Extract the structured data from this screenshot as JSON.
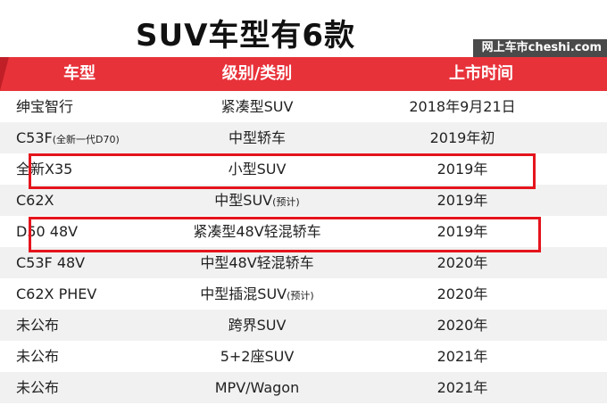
{
  "title": "SUV车型有6款",
  "site_badge": "网上车市cheshi.com",
  "table": {
    "headers": [
      "车型",
      "级别/类别",
      "上市时间"
    ],
    "rows": [
      {
        "model": "绅宝智行",
        "model_note": "",
        "level": "紧凑型SUV",
        "level_note": "",
        "date": "2018年9月21日"
      },
      {
        "model": "C53F",
        "model_note": "(全新一代D70)",
        "level": "中型轿车",
        "level_note": "",
        "date": "2019年初"
      },
      {
        "model": "全新X35",
        "model_note": "",
        "level": "小型SUV",
        "level_note": "",
        "date": "2019年"
      },
      {
        "model": "C62X",
        "model_note": "",
        "level": "中型SUV",
        "level_note": "(预计)",
        "date": "2019年"
      },
      {
        "model": "D50 48V",
        "model_note": "",
        "level": "紧凑型48V轻混轿车",
        "level_note": "",
        "date": "2019年"
      },
      {
        "model": "C53F 48V",
        "model_note": "",
        "level": "中型48V轻混轿车",
        "level_note": "",
        "date": "2020年"
      },
      {
        "model": "C62X PHEV",
        "model_note": "",
        "level": "中型插混SUV",
        "level_note": "(预计)",
        "date": "2020年"
      },
      {
        "model": "未公布",
        "model_note": "",
        "level": "跨界SUV",
        "level_note": "",
        "date": "2020年"
      },
      {
        "model": "未公布",
        "model_note": "",
        "level": "5+2座SUV",
        "level_note": "",
        "date": "2021年"
      },
      {
        "model": "未公布",
        "model_note": "",
        "level": "MPV/Wagon",
        "level_note": "",
        "date": "2021年"
      }
    ]
  },
  "colors": {
    "header_red": "#e8323a",
    "highlight_red": "#e5141c",
    "badge_gray": "#4a4a4a"
  }
}
